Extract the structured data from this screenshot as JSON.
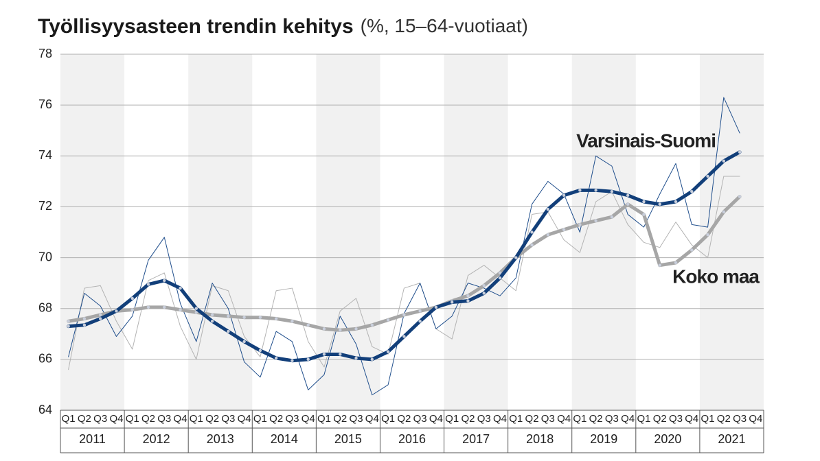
{
  "chart_data": {
    "type": "line",
    "title": "Työllisyysasteen trendin kehitys",
    "subtitle": "(%, 15–64-vuotiaat)",
    "categories": [
      "Q1",
      "Q2",
      "Q3",
      "Q4",
      "Q1",
      "Q2",
      "Q3",
      "Q4",
      "Q1",
      "Q2",
      "Q3",
      "Q4",
      "Q1",
      "Q2",
      "Q3",
      "Q4",
      "Q1",
      "Q2",
      "Q3",
      "Q4",
      "Q1",
      "Q2",
      "Q3",
      "Q4",
      "Q1",
      "Q2",
      "Q3",
      "Q4",
      "Q1",
      "Q2",
      "Q3",
      "Q4",
      "Q1",
      "Q2",
      "Q3",
      "Q4",
      "Q1",
      "Q2",
      "Q3",
      "Q4",
      "Q1",
      "Q2",
      "Q3",
      "Q4"
    ],
    "years": [
      "2011",
      "2012",
      "2013",
      "2014",
      "2015",
      "2016",
      "2017",
      "2018",
      "2019",
      "2020",
      "2021"
    ],
    "ylim": [
      64,
      78
    ],
    "yticks": [
      64,
      66,
      68,
      70,
      72,
      74,
      76,
      78
    ],
    "grid": true,
    "series": [
      {
        "color": "#b3b3b3",
        "width": 1,
        "values": [
          65.6,
          68.8,
          68.9,
          67.5,
          66.4,
          69.1,
          69.4,
          67.3,
          66.0,
          68.9,
          68.7,
          66.9,
          66.1,
          68.7,
          68.8,
          66.7,
          65.7,
          67.9,
          68.4,
          66.5,
          66.2,
          68.8,
          69.0,
          67.2,
          66.8,
          69.3,
          69.7,
          69.2,
          68.7,
          71.7,
          71.8,
          70.7,
          70.2,
          72.2,
          72.6,
          71.3,
          70.6,
          70.4,
          71.4,
          70.5,
          70.0,
          73.2,
          73.2,
          null
        ]
      },
      {
        "color": "#1f4e8c",
        "width": 1,
        "values": [
          66.1,
          68.6,
          68.1,
          66.9,
          67.7,
          69.9,
          70.8,
          68.2,
          66.7,
          69.0,
          68.0,
          65.9,
          65.3,
          67.1,
          66.7,
          64.8,
          65.4,
          67.7,
          66.6,
          64.6,
          65.0,
          67.8,
          69.0,
          67.2,
          67.7,
          69.0,
          68.8,
          68.5,
          69.2,
          72.1,
          73.0,
          72.5,
          71.0,
          74.0,
          73.6,
          71.7,
          71.2,
          72.5,
          73.7,
          71.3,
          71.2,
          76.3,
          74.9,
          null
        ]
      },
      {
        "name": "Koko maa",
        "color": "#a6a6a6",
        "width": 5,
        "values": [
          67.5,
          67.6,
          67.75,
          67.9,
          67.95,
          68.05,
          68.05,
          67.95,
          67.85,
          67.75,
          67.7,
          67.65,
          67.65,
          67.6,
          67.5,
          67.35,
          67.2,
          67.15,
          67.2,
          67.35,
          67.55,
          67.75,
          67.9,
          68.05,
          68.3,
          68.5,
          68.9,
          69.4,
          70.0,
          70.5,
          70.9,
          71.1,
          71.3,
          71.45,
          71.6,
          72.1,
          71.7,
          69.7,
          69.8,
          70.3,
          70.9,
          71.8,
          72.4,
          null
        ]
      },
      {
        "name": "Varsinais-Suomi",
        "color": "#123f7a",
        "width": 5,
        "values": [
          67.3,
          67.35,
          67.6,
          67.9,
          68.4,
          68.95,
          69.1,
          68.8,
          68.0,
          67.5,
          67.1,
          66.7,
          66.35,
          66.05,
          65.95,
          66.0,
          66.2,
          66.2,
          66.05,
          66.0,
          66.3,
          66.9,
          67.5,
          68.05,
          68.25,
          68.3,
          68.6,
          69.2,
          70.0,
          71.0,
          71.9,
          72.45,
          72.65,
          72.65,
          72.6,
          72.45,
          72.2,
          72.1,
          72.2,
          72.6,
          73.2,
          73.8,
          74.15,
          null
        ]
      }
    ]
  }
}
